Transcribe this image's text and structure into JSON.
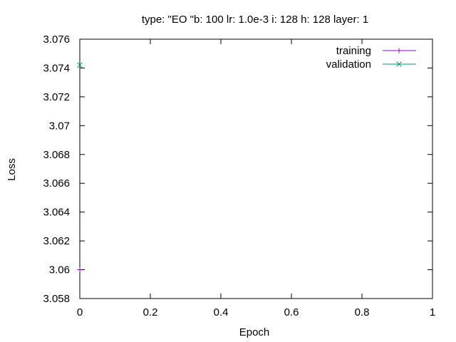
{
  "chart_data": {
    "type": "line",
    "title": "type: \"EO \"b: 100 lr: 1.0e-3 i: 128 h: 128 layer: 1",
    "xlabel": "Epoch",
    "ylabel": "Loss",
    "xlim": [
      0,
      1
    ],
    "ylim": [
      3.058,
      3.076
    ],
    "x_ticks": [
      0,
      0.2,
      0.4,
      0.6,
      0.8,
      1
    ],
    "x_tick_labels": [
      "0",
      "0.2",
      "0.4",
      "0.6",
      "0.8",
      "1"
    ],
    "y_ticks": [
      3.058,
      3.06,
      3.062,
      3.064,
      3.066,
      3.068,
      3.07,
      3.072,
      3.074,
      3.076
    ],
    "y_tick_labels": [
      "3.058",
      "3.06",
      "3.062",
      "3.064",
      "3.066",
      "3.068",
      "3.07",
      "3.072",
      "3.074",
      "3.076"
    ],
    "grid": false,
    "legend_position": "top-right",
    "series": [
      {
        "name": "training",
        "marker": "plus",
        "color": "#9400d3",
        "x": [
          0
        ],
        "y": [
          3.06
        ]
      },
      {
        "name": "validation",
        "marker": "cross",
        "color": "#009e73",
        "x": [
          0
        ],
        "y": [
          3.0742
        ]
      }
    ]
  }
}
